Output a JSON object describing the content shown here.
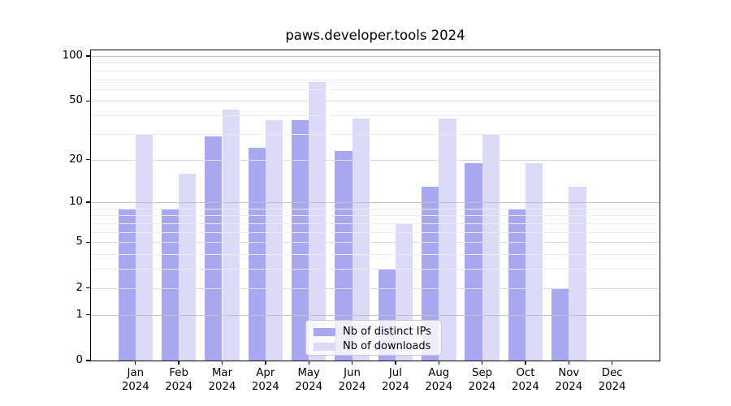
{
  "title": "paws.developer.tools 2024",
  "legend": {
    "items": [
      {
        "label": "Nb of distinct IPs",
        "color": "#a8a8f2"
      },
      {
        "label": "Nb of downloads",
        "color": "#dbdbf8"
      }
    ]
  },
  "chart_data": {
    "type": "bar",
    "title": "paws.developer.tools 2024",
    "categories": [
      "Jan",
      "Feb",
      "Mar",
      "Apr",
      "May",
      "Jun",
      "Jul",
      "Aug",
      "Sep",
      "Oct",
      "Nov",
      "Dec"
    ],
    "category_year": "2024",
    "series": [
      {
        "name": "Nb of distinct IPs",
        "color": "#a8a8f2",
        "values": [
          9,
          9,
          29,
          24,
          37,
          23,
          3,
          13,
          19,
          9,
          2,
          0
        ]
      },
      {
        "name": "Nb of downloads",
        "color": "#dbdbf8",
        "values": [
          30,
          16,
          44,
          37,
          67,
          38,
          7,
          38,
          30,
          19,
          13,
          0
        ]
      }
    ],
    "xlabel": "",
    "ylabel": "",
    "yscale": "log1p",
    "yticks": [
      0,
      1,
      2,
      5,
      10,
      20,
      50,
      100
    ],
    "ylim": [
      0,
      109
    ],
    "grid": true,
    "grid_above_bars": true,
    "legend_position": "lower-center-inside"
  },
  "colors": {
    "grid_strong": "#c3c3c3",
    "grid_major": "#dedede",
    "grid_minor": "#ececec",
    "axis": "#000000",
    "legend_border": "#cccccc"
  }
}
